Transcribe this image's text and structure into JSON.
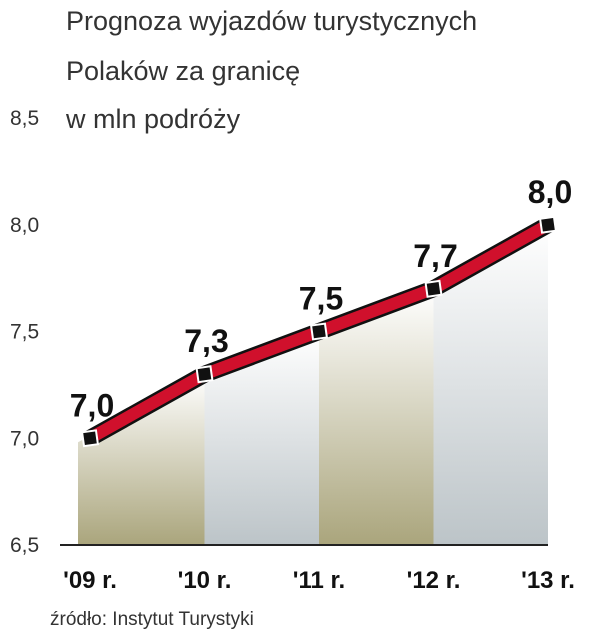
{
  "chart_data": {
    "type": "line",
    "title": "Prognoza wyjazdów turystycznych",
    "title_line2": "Polaków za granicę",
    "subtitle": "w mln podróży",
    "source": "źródło: Instytut Turystyki",
    "categories": [
      "'09 r.",
      "'10 r.",
      "'11 r.",
      "'12 r.",
      "'13 r."
    ],
    "values": [
      7.0,
      7.3,
      7.5,
      7.7,
      8.0
    ],
    "value_labels": [
      "7,0",
      "7,3",
      "7,5",
      "7,7",
      "8,0"
    ],
    "color": "#d0102c",
    "ylim": [
      6.5,
      8.5
    ],
    "yticks": [
      {
        "value": 6.5,
        "label": "6,5"
      },
      {
        "value": 7.0,
        "label": "7,0"
      },
      {
        "value": 7.5,
        "label": "7,5"
      },
      {
        "value": 8.0,
        "label": "8,0"
      },
      {
        "value": 8.5,
        "label": "8,5"
      }
    ]
  }
}
